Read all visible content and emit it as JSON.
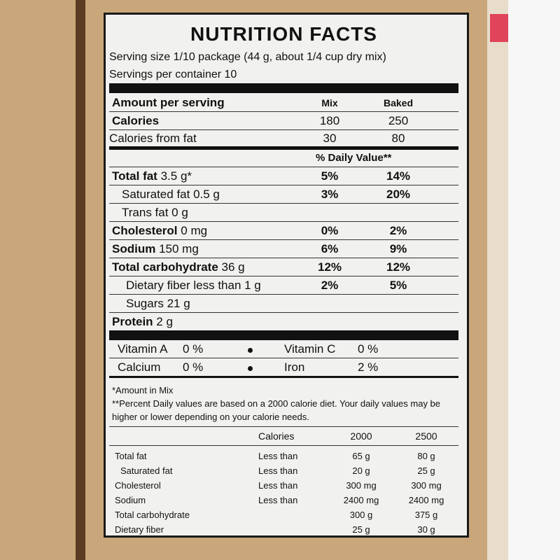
{
  "title": "NUTRITION FACTS",
  "serving_size": "Serving size 1/10 package (44 g, about 1/4 cup dry mix)",
  "servings": "Servings per container 10",
  "header": {
    "label": "Amount per serving",
    "mix": "Mix",
    "baked": "Baked"
  },
  "calories": {
    "label": "Calories",
    "mix": "180",
    "baked": "250"
  },
  "calories_fat": {
    "label": "Calories from fat",
    "mix": "30",
    "baked": "80"
  },
  "dv_header": "% Daily Value**",
  "nutrients": [
    {
      "name": "Total fat",
      "amount": "3.5 g*",
      "mix": "5%",
      "baked": "14%"
    },
    {
      "name": "Saturated fat 0.5 g",
      "mix": "3%",
      "baked": "20%"
    },
    {
      "name": "Trans fat  0 g"
    },
    {
      "name": "Cholesterol",
      "amount": "0 mg",
      "mix": "0%",
      "baked": "2%"
    },
    {
      "name": "Sodium",
      "amount": "150 mg",
      "mix": "6%",
      "baked": "9%"
    },
    {
      "name": "Total carbohydrate",
      "amount": "36 g",
      "mix": "12%",
      "baked": "12%"
    },
    {
      "name": "Dietary fiber less than 1 g",
      "mix": "2%",
      "baked": "5%"
    },
    {
      "name": "Sugars 21 g"
    },
    {
      "name": "Protein",
      "amount": "2 g"
    }
  ],
  "vitamins": [
    [
      {
        "name": "Vitamin A",
        "value": "0 %"
      },
      {
        "name": "Vitamin C",
        "value": "0 %"
      }
    ],
    [
      {
        "name": "Calcium",
        "value": "0 %"
      },
      {
        "name": "Iron",
        "value": "2 %"
      }
    ]
  ],
  "footnotes": [
    "*Amount in Mix",
    "**Percent Daily values are based on a 2000 calorie diet. Your daily values may be higher or lower depending on your calorie needs."
  ],
  "dv_table": {
    "header": [
      "Calories",
      "2000",
      "2500"
    ],
    "rows": [
      {
        "name": "Total fat",
        "limit": "Less than",
        "v2000": "65 g",
        "v2500": "80 g"
      },
      {
        "name": "Saturated fat",
        "limit": "Less than",
        "v2000": "20 g",
        "v2500": "25 g"
      },
      {
        "name": "Cholesterol",
        "limit": "Less than",
        "v2000": "300 mg",
        "v2500": "300 mg"
      },
      {
        "name": "Sodium",
        "limit": "Less than",
        "v2000": "2400 mg",
        "v2500": "2400 mg"
      },
      {
        "name": "Total carbohydrate",
        "v2000": "300 g",
        "v2500": "375 g"
      },
      {
        "name": "Dietary fiber",
        "v2000": "25 g",
        "v2500": "30 g"
      }
    ]
  }
}
